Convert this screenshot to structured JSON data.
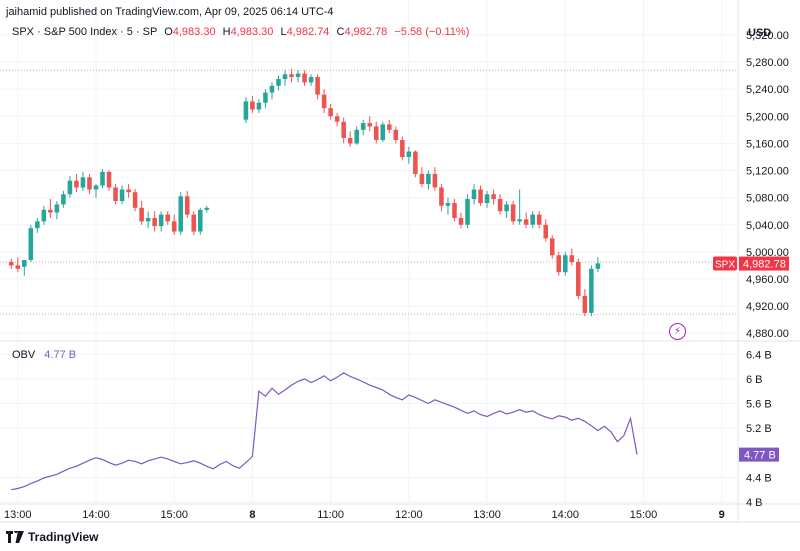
{
  "header": {
    "publisher": "jaihamid published on TradingView.com, Apr 09, 2025 06:14 UTC-4"
  },
  "legend": {
    "symbol": "SPX · S&P 500 Index · 5 · SP",
    "open_label": "O",
    "open": "4,983.30",
    "high_label": "H",
    "high": "4,983.30",
    "low_label": "L",
    "low": "4,982.74",
    "close_label": "C",
    "close": "4,982.78",
    "change": "−5.58 (−0.11%)"
  },
  "obv_legend": {
    "label": "OBV",
    "value": "4.77 B"
  },
  "footer": {
    "brand": "TradingView"
  },
  "icons": {
    "lightning": "lightning-icon",
    "logo": "tradingview-logo-icon"
  },
  "colors": {
    "up": "#26a69a",
    "down": "#ef5350",
    "obv": "#7e57c2",
    "price_tag": "#f23645",
    "obv_tag": "#7e57c2"
  },
  "chart_data": [
    {
      "type": "candlestick",
      "y_axis_unit": "USD",
      "ylim": [
        4870,
        5345
      ],
      "y_ticks": [
        "5,320.00",
        "5,280.00",
        "5,240.00",
        "5,200.00",
        "5,160.00",
        "5,120.00",
        "5,080.00",
        "5,040.00",
        "5,000.00",
        "4,960.00",
        "4,920.00",
        "4,880.00"
      ],
      "y_tick_values": [
        5320,
        5280,
        5240,
        5200,
        5160,
        5120,
        5080,
        5040,
        5000,
        4960,
        4920,
        4880
      ],
      "x_ticks": [
        "13:00",
        "14:00",
        "15:00",
        "8",
        "11:00",
        "12:00",
        "13:00",
        "14:00",
        "15:00",
        "9"
      ],
      "x_tick_index": [
        1,
        13,
        25,
        37,
        49,
        61,
        73,
        85,
        97,
        109
      ],
      "current_price_tag": {
        "label": "SPX",
        "value": "4,982.78",
        "price": 4982.78
      },
      "dotted_levels": [
        5268,
        4985,
        4908
      ],
      "candles": [
        [
          4985,
          4990,
          4975,
          4980
        ],
        [
          4980,
          4992,
          4970,
          4975
        ],
        [
          4978,
          4985,
          4965,
          4988
        ],
        [
          4988,
          5040,
          4985,
          5035
        ],
        [
          5035,
          5050,
          5028,
          5045
        ],
        [
          5045,
          5068,
          5040,
          5062
        ],
        [
          5062,
          5078,
          5050,
          5058
        ],
        [
          5058,
          5075,
          5048,
          5070
        ],
        [
          5070,
          5090,
          5065,
          5085
        ],
        [
          5085,
          5112,
          5080,
          5105
        ],
        [
          5105,
          5115,
          5088,
          5095
        ],
        [
          5095,
          5118,
          5090,
          5110
        ],
        [
          5110,
          5115,
          5085,
          5092
        ],
        [
          5092,
          5100,
          5080,
          5098
        ],
        [
          5098,
          5122,
          5094,
          5118
        ],
        [
          5118,
          5120,
          5090,
          5095
        ],
        [
          5095,
          5100,
          5070,
          5075
        ],
        [
          5075,
          5098,
          5070,
          5092
        ],
        [
          5092,
          5100,
          5080,
          5088
        ],
        [
          5088,
          5093,
          5060,
          5065
        ],
        [
          5065,
          5075,
          5040,
          5045
        ],
        [
          5045,
          5060,
          5035,
          5050
        ],
        [
          5050,
          5060,
          5030,
          5038
        ],
        [
          5038,
          5060,
          5030,
          5055
        ],
        [
          5055,
          5060,
          5040,
          5045
        ],
        [
          5045,
          5055,
          5025,
          5030
        ],
        [
          5030,
          5088,
          5025,
          5082
        ],
        [
          5082,
          5090,
          5050,
          5055
        ],
        [
          5055,
          5060,
          5025,
          5030
        ],
        [
          5030,
          5065,
          5025,
          5062
        ],
        [
          5062,
          5068,
          5058,
          5065
        ],
        [
          5195,
          5228,
          5190,
          5222
        ],
        [
          5222,
          5230,
          5205,
          5210
        ],
        [
          5210,
          5225,
          5205,
          5220
        ],
        [
          5220,
          5240,
          5212,
          5235
        ],
        [
          5235,
          5250,
          5225,
          5245
        ],
        [
          5245,
          5260,
          5238,
          5255
        ],
        [
          5255,
          5268,
          5245,
          5262
        ],
        [
          5262,
          5270,
          5250,
          5258
        ],
        [
          5258,
          5268,
          5250,
          5263
        ],
        [
          5263,
          5268,
          5245,
          5250
        ],
        [
          5250,
          5262,
          5245,
          5258
        ],
        [
          5258,
          5262,
          5225,
          5232
        ],
        [
          5232,
          5240,
          5205,
          5212
        ],
        [
          5212,
          5218,
          5195,
          5200
        ],
        [
          5200,
          5205,
          5185,
          5192
        ],
        [
          5192,
          5198,
          5160,
          5168
        ],
        [
          5168,
          5178,
          5155,
          5160
        ],
        [
          5160,
          5185,
          5158,
          5180
        ],
        [
          5180,
          5195,
          5172,
          5190
        ],
        [
          5190,
          5200,
          5178,
          5185
        ],
        [
          5185,
          5192,
          5160,
          5165
        ],
        [
          5165,
          5192,
          5162,
          5188
        ],
        [
          5188,
          5195,
          5175,
          5180
        ],
        [
          5180,
          5185,
          5160,
          5165
        ],
        [
          5165,
          5170,
          5135,
          5140
        ],
        [
          5140,
          5155,
          5130,
          5148
        ],
        [
          5148,
          5150,
          5110,
          5115
        ],
        [
          5115,
          5125,
          5095,
          5100
        ],
        [
          5100,
          5120,
          5092,
          5115
        ],
        [
          5115,
          5125,
          5090,
          5095
        ],
        [
          5095,
          5100,
          5060,
          5068
        ],
        [
          5068,
          5080,
          5055,
          5072
        ],
        [
          5072,
          5078,
          5045,
          5050
        ],
        [
          5050,
          5058,
          5035,
          5040
        ],
        [
          5040,
          5085,
          5035,
          5078
        ],
        [
          5078,
          5100,
          5070,
          5092
        ],
        [
          5092,
          5098,
          5068,
          5072
        ],
        [
          5072,
          5090,
          5065,
          5085
        ],
        [
          5085,
          5092,
          5070,
          5078
        ],
        [
          5078,
          5085,
          5055,
          5060
        ],
        [
          5060,
          5075,
          5050,
          5070
        ],
        [
          5070,
          5075,
          5040,
          5045
        ],
        [
          5045,
          5092,
          5040,
          5048
        ],
        [
          5048,
          5058,
          5035,
          5040
        ],
        [
          5040,
          5060,
          5035,
          5055
        ],
        [
          5055,
          5060,
          5035,
          5040
        ],
        [
          5040,
          5048,
          5015,
          5020
        ],
        [
          5020,
          5025,
          4990,
          4995
        ],
        [
          4995,
          5000,
          4965,
          4970
        ],
        [
          4970,
          5000,
          4965,
          4995
        ],
        [
          4995,
          5005,
          4980,
          4985
        ],
        [
          4985,
          4990,
          4930,
          4935
        ],
        [
          4935,
          4945,
          4905,
          4910
        ],
        [
          4910,
          4980,
          4905,
          4975
        ],
        [
          4975,
          4992,
          4970,
          4983
        ]
      ]
    },
    {
      "type": "line",
      "name": "OBV",
      "unit": "B",
      "ylim": [
        4.0,
        6.6
      ],
      "y_ticks": [
        "6.4 B",
        "6 B",
        "5.6 B",
        "5.2 B",
        "4.4 B",
        "4 B"
      ],
      "y_tick_values": [
        6.4,
        6.0,
        5.6,
        5.2,
        4.4,
        4.0
      ],
      "current_value_tag": {
        "value": "4.77 B",
        "num": 4.77
      },
      "values": [
        4.2,
        4.22,
        4.25,
        4.3,
        4.34,
        4.39,
        4.42,
        4.45,
        4.5,
        4.55,
        4.58,
        4.63,
        4.68,
        4.72,
        4.69,
        4.64,
        4.6,
        4.63,
        4.68,
        4.66,
        4.62,
        4.67,
        4.7,
        4.73,
        4.7,
        4.66,
        4.62,
        4.64,
        4.67,
        4.63,
        4.58,
        4.54,
        4.61,
        4.66,
        4.59,
        4.55,
        4.64,
        4.74,
        5.8,
        5.72,
        5.85,
        5.75,
        5.82,
        5.9,
        5.96,
        6.0,
        5.94,
        5.99,
        6.05,
        5.97,
        6.03,
        6.1,
        6.04,
        6.0,
        5.95,
        5.9,
        5.86,
        5.82,
        5.75,
        5.7,
        5.66,
        5.74,
        5.7,
        5.65,
        5.6,
        5.66,
        5.62,
        5.58,
        5.54,
        5.49,
        5.44,
        5.48,
        5.42,
        5.39,
        5.44,
        5.48,
        5.43,
        5.46,
        5.5,
        5.46,
        5.48,
        5.42,
        5.38,
        5.35,
        5.4,
        5.38,
        5.33,
        5.36,
        5.31,
        5.24,
        5.16,
        5.23,
        5.14,
        4.98,
        5.08,
        5.36,
        4.77
      ]
    }
  ]
}
